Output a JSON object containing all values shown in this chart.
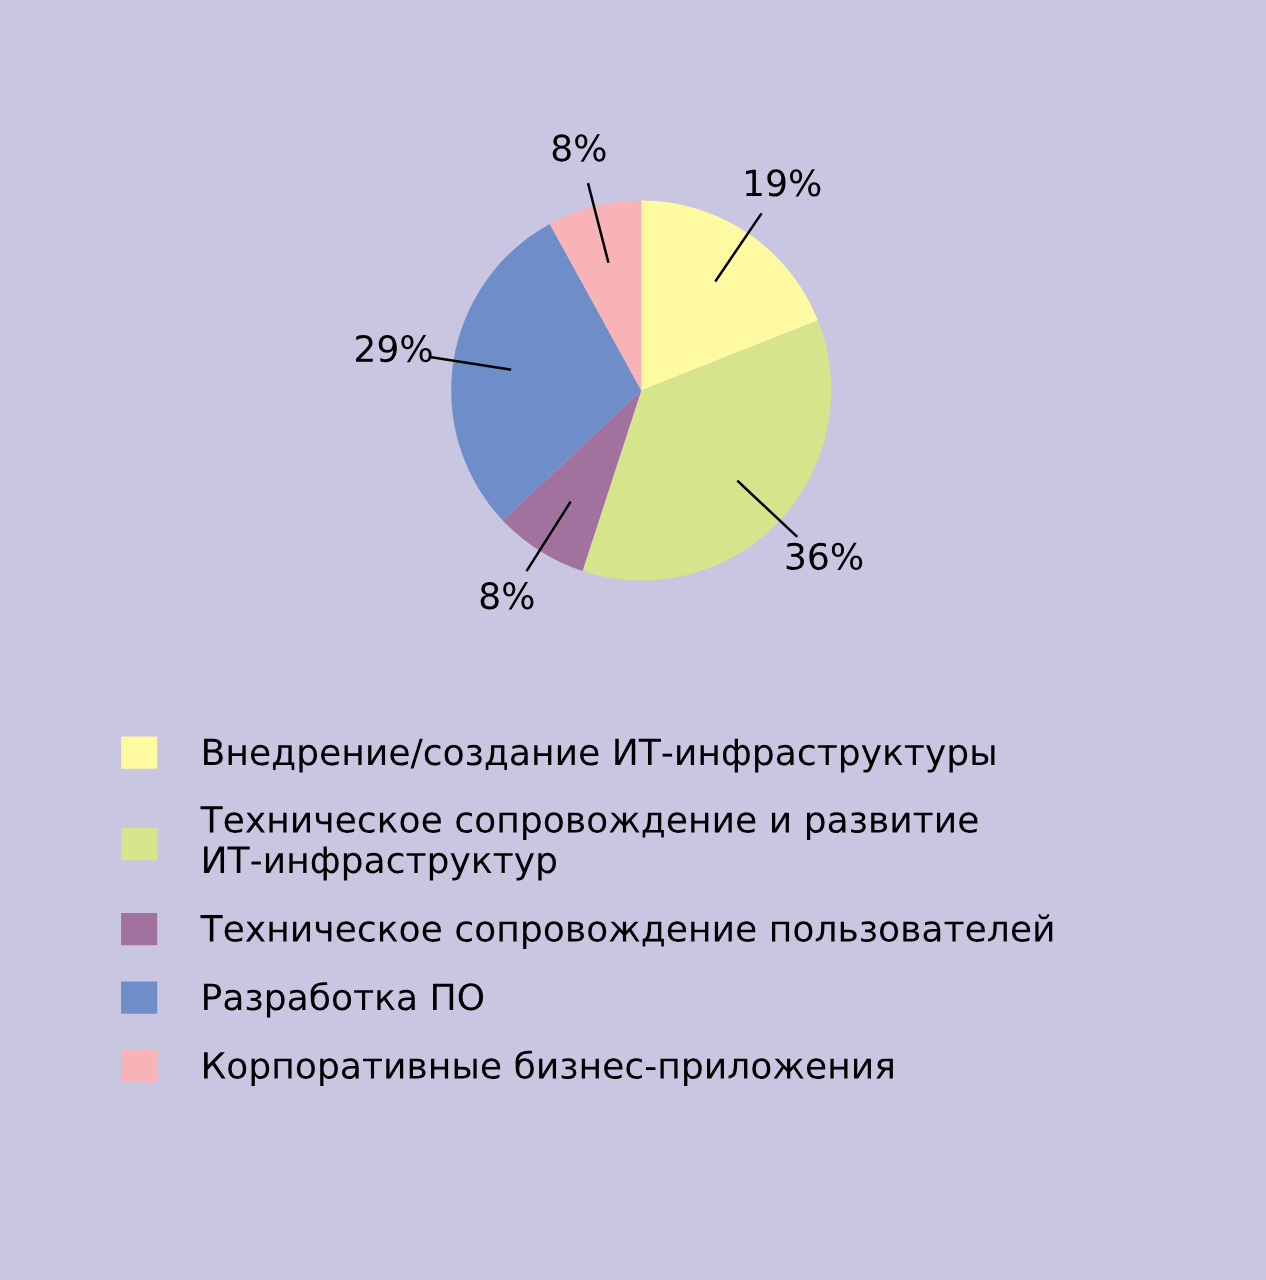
{
  "chart_data": {
    "type": "pie",
    "categories": [
      "Внедрение/создание ИТ-инфраструктуры",
      "Техническое сопровождение и развитие\nИТ-инфраструктур",
      "Техническое сопровождение пользователей",
      "Разработка ПО",
      "Корпоративные бизнес-приложения"
    ],
    "values": [
      19,
      36,
      8,
      29,
      8
    ],
    "colors": [
      "#fdfaa2",
      "#d6e48b",
      "#a2729f",
      "#6f8dc8",
      "#f7b3b5"
    ],
    "value_labels": [
      "19%",
      "36%",
      "8%",
      "29%",
      "8%"
    ],
    "legend": "bottom"
  }
}
